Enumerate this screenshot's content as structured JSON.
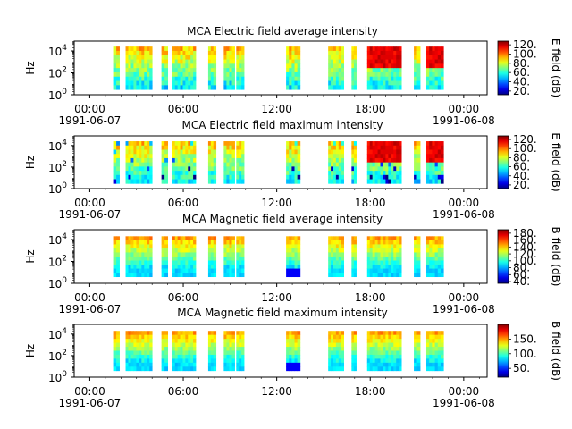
{
  "chart_data": [
    {
      "type": "heatmap",
      "title": "MCA  Electric field average intensity",
      "ylabel": "Hz",
      "y_scale": "log",
      "y_ticks": [
        {
          "value": 1,
          "label": "10",
          "exp": "0"
        },
        {
          "value": 100,
          "label": "10",
          "exp": "2"
        },
        {
          "value": 10000,
          "label": "10",
          "exp": "4"
        }
      ],
      "x_ticks": [
        {
          "hour": 0,
          "label": "00:00",
          "sub": "1991-06-07"
        },
        {
          "hour": 6,
          "label": "06:00",
          "sub": ""
        },
        {
          "hour": 12,
          "label": "12:00",
          "sub": ""
        },
        {
          "hour": 18,
          "label": "18:00",
          "sub": ""
        },
        {
          "hour": 24,
          "label": "00:00",
          "sub": "1991-06-08"
        }
      ],
      "xlim_hours": [
        -1,
        25.5
      ],
      "colorbar": {
        "label": "E field (dB)",
        "range": [
          12,
          128
        ],
        "ticks": [
          {
            "value": 20,
            "label": "20."
          },
          {
            "value": 40,
            "label": "40."
          },
          {
            "value": 60,
            "label": "60."
          },
          {
            "value": 80,
            "label": "80."
          },
          {
            "value": 100,
            "label": "100."
          },
          {
            "value": 120,
            "label": "120."
          }
        ]
      },
      "segments": [
        [
          1.5,
          1.9
        ],
        [
          2.3,
          4.0
        ],
        [
          4.6,
          5.0
        ],
        [
          5.3,
          6.8
        ],
        [
          7.6,
          8.1
        ],
        [
          8.6,
          9.3
        ],
        [
          9.4,
          9.9
        ],
        [
          12.6,
          13.5
        ],
        [
          15.3,
          16.3
        ],
        [
          16.8,
          17.1
        ],
        [
          17.8,
          20.0
        ],
        [
          20.8,
          21.2
        ],
        [
          21.6,
          22.7
        ]
      ]
    },
    {
      "type": "heatmap",
      "title": "MCA  Electric field maximum intensity",
      "ylabel": "Hz",
      "y_scale": "log",
      "y_ticks": [
        {
          "value": 1,
          "label": "10",
          "exp": "0"
        },
        {
          "value": 100,
          "label": "10",
          "exp": "2"
        },
        {
          "value": 10000,
          "label": "10",
          "exp": "4"
        }
      ],
      "x_ticks": [
        {
          "hour": 0,
          "label": "00:00",
          "sub": "1991-06-07"
        },
        {
          "hour": 6,
          "label": "06:00",
          "sub": ""
        },
        {
          "hour": 12,
          "label": "12:00",
          "sub": ""
        },
        {
          "hour": 18,
          "label": "18:00",
          "sub": ""
        },
        {
          "hour": 24,
          "label": "00:00",
          "sub": "1991-06-08"
        }
      ],
      "xlim_hours": [
        -1,
        25.5
      ],
      "colorbar": {
        "label": "E field (dB)",
        "range": [
          12,
          128
        ],
        "ticks": [
          {
            "value": 20,
            "label": "20."
          },
          {
            "value": 40,
            "label": "40."
          },
          {
            "value": 60,
            "label": "60."
          },
          {
            "value": 80,
            "label": "80."
          },
          {
            "value": 100,
            "label": "100."
          },
          {
            "value": 120,
            "label": "120."
          }
        ]
      },
      "segments": [
        [
          1.5,
          1.9
        ],
        [
          2.3,
          4.0
        ],
        [
          4.6,
          5.0
        ],
        [
          5.3,
          6.8
        ],
        [
          7.6,
          8.1
        ],
        [
          8.6,
          9.3
        ],
        [
          9.4,
          9.9
        ],
        [
          12.6,
          13.5
        ],
        [
          15.3,
          16.3
        ],
        [
          16.8,
          17.1
        ],
        [
          17.8,
          20.0
        ],
        [
          20.8,
          21.2
        ],
        [
          21.6,
          22.7
        ]
      ]
    },
    {
      "type": "heatmap",
      "title": "MCA  Magnetic field average intensity",
      "ylabel": "Hz",
      "y_scale": "log",
      "y_ticks": [
        {
          "value": 1,
          "label": "10",
          "exp": "0"
        },
        {
          "value": 100,
          "label": "10",
          "exp": "2"
        },
        {
          "value": 10000,
          "label": "10",
          "exp": "4"
        }
      ],
      "x_ticks": [
        {
          "hour": 0,
          "label": "00:00",
          "sub": "1991-06-07"
        },
        {
          "hour": 6,
          "label": "06:00",
          "sub": ""
        },
        {
          "hour": 12,
          "label": "12:00",
          "sub": ""
        },
        {
          "hour": 18,
          "label": "18:00",
          "sub": ""
        },
        {
          "hour": 24,
          "label": "00:00",
          "sub": "1991-06-08"
        }
      ],
      "xlim_hours": [
        -1,
        25.5
      ],
      "colorbar": {
        "label": "B field (dB)",
        "range": [
          35,
          190
        ],
        "ticks": [
          {
            "value": 40,
            "label": "40."
          },
          {
            "value": 60,
            "label": "60."
          },
          {
            "value": 80,
            "label": "80."
          },
          {
            "value": 100,
            "label": "100."
          },
          {
            "value": 120,
            "label": "120."
          },
          {
            "value": 140,
            "label": "140."
          },
          {
            "value": 160,
            "label": "160."
          },
          {
            "value": 180,
            "label": "180."
          }
        ]
      },
      "segments": [
        [
          1.5,
          1.9
        ],
        [
          2.3,
          4.0
        ],
        [
          4.6,
          5.0
        ],
        [
          5.3,
          6.8
        ],
        [
          7.6,
          8.1
        ],
        [
          8.6,
          9.3
        ],
        [
          9.4,
          9.9
        ],
        [
          12.6,
          13.5
        ],
        [
          15.3,
          16.3
        ],
        [
          16.8,
          17.1
        ],
        [
          17.8,
          20.0
        ],
        [
          20.8,
          21.2
        ],
        [
          21.6,
          22.7
        ]
      ]
    },
    {
      "type": "heatmap",
      "title": "MCA  Magnetic field maximum intensity",
      "ylabel": "Hz",
      "y_scale": "log",
      "y_ticks": [
        {
          "value": 1,
          "label": "10",
          "exp": "0"
        },
        {
          "value": 100,
          "label": "10",
          "exp": "2"
        },
        {
          "value": 10000,
          "label": "10",
          "exp": "4"
        }
      ],
      "x_ticks": [
        {
          "hour": 0,
          "label": "00:00",
          "sub": "1991-06-07"
        },
        {
          "hour": 6,
          "label": "06:00",
          "sub": ""
        },
        {
          "hour": 12,
          "label": "12:00",
          "sub": ""
        },
        {
          "hour": 18,
          "label": "18:00",
          "sub": ""
        },
        {
          "hour": 24,
          "label": "00:00",
          "sub": "1991-06-08"
        }
      ],
      "xlim_hours": [
        -1,
        25.5
      ],
      "colorbar": {
        "label": "B field (dB)",
        "range": [
          20,
          200
        ],
        "ticks": [
          {
            "value": 50,
            "label": "50."
          },
          {
            "value": 100,
            "label": "100."
          },
          {
            "value": 150,
            "label": "150."
          }
        ]
      },
      "segments": [
        [
          1.5,
          1.9
        ],
        [
          2.3,
          4.0
        ],
        [
          4.6,
          5.0
        ],
        [
          5.3,
          6.8
        ],
        [
          7.6,
          8.1
        ],
        [
          8.6,
          9.3
        ],
        [
          9.4,
          9.9
        ],
        [
          12.6,
          13.5
        ],
        [
          15.3,
          16.3
        ],
        [
          16.8,
          17.1
        ],
        [
          17.8,
          20.0
        ],
        [
          20.8,
          21.2
        ],
        [
          21.6,
          22.7
        ]
      ]
    }
  ]
}
